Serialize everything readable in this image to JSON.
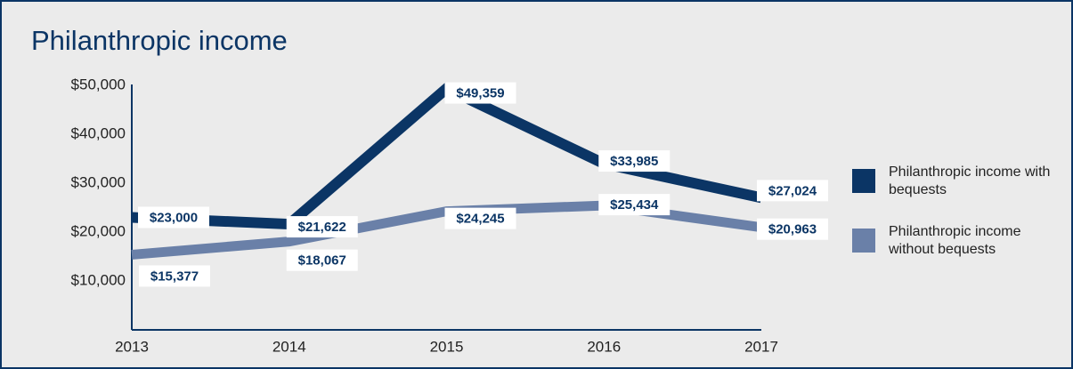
{
  "chart_data": {
    "type": "line",
    "title": "Philanthropic income",
    "categories": [
      "2013",
      "2014",
      "2015",
      "2016",
      "2017"
    ],
    "series": [
      {
        "name": "Philanthropic income with bequests",
        "color": "#0b3565",
        "values": [
          23000,
          21622,
          49359,
          33985,
          27024
        ],
        "value_labels": [
          "$23,000",
          "$21,622",
          "$49,359",
          "$33,985",
          "$27,024"
        ]
      },
      {
        "name": "Philanthropic income without bequests",
        "color": "#6a80a8",
        "values": [
          15377,
          18067,
          24245,
          25434,
          20963
        ],
        "value_labels": [
          "$15,377",
          "$18,067",
          "$24,245",
          "$25,434",
          "$20,963"
        ]
      }
    ],
    "ylim": [
      0,
      50000
    ],
    "yticks": [
      {
        "value": 10000,
        "label": "$10,000"
      },
      {
        "value": 20000,
        "label": "$20,000"
      },
      {
        "value": 30000,
        "label": "$30,000"
      },
      {
        "value": 40000,
        "label": "$40,000"
      },
      {
        "value": 50000,
        "label": "$50,000"
      }
    ],
    "grid": false,
    "legend": "right"
  }
}
